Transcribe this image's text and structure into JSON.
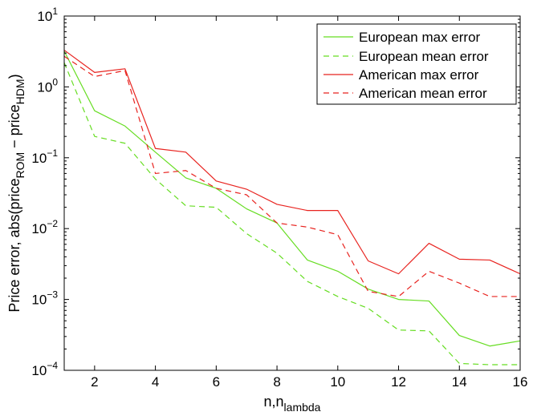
{
  "chart_data": {
    "type": "line",
    "title": "",
    "xlabel": "n,n",
    "xlabel_sub": "lambda",
    "ylabel_parts": [
      "Price error, abs(price",
      "ROM",
      " − price",
      "HDM",
      ")"
    ],
    "xlim": [
      1,
      16
    ],
    "ylim": [
      0.0001,
      10
    ],
    "yscale": "log",
    "grid": false,
    "legend_position": "top-right",
    "x_ticks": [
      2,
      4,
      6,
      8,
      10,
      12,
      14,
      16
    ],
    "y_ticks": [
      {
        "value": 0.0001,
        "base": "10",
        "exp": "−4"
      },
      {
        "value": 0.001,
        "base": "10",
        "exp": "−3"
      },
      {
        "value": 0.01,
        "base": "10",
        "exp": "−2"
      },
      {
        "value": 0.1,
        "base": "10",
        "exp": "−1"
      },
      {
        "value": 1,
        "base": "10",
        "exp": "0"
      },
      {
        "value": 10,
        "base": "10",
        "exp": "1"
      }
    ],
    "x": [
      1,
      2,
      3,
      4,
      5,
      6,
      7,
      8,
      9,
      10,
      11,
      12,
      13,
      14,
      15,
      16
    ],
    "series": [
      {
        "name": "European max error",
        "color": "#66dd22",
        "dash": "solid",
        "values": [
          3.2,
          0.46,
          0.28,
          0.12,
          0.052,
          0.037,
          0.019,
          0.012,
          0.0036,
          0.0025,
          0.0014,
          0.001,
          0.00095,
          0.00031,
          0.00022,
          0.00026
        ]
      },
      {
        "name": "European mean error",
        "color": "#66dd22",
        "dash": "dashed",
        "values": [
          2.2,
          0.2,
          0.16,
          0.05,
          0.021,
          0.02,
          0.0085,
          0.0045,
          0.0018,
          0.0011,
          0.00075,
          0.00037,
          0.00036,
          0.000125,
          0.00012,
          0.00012
        ]
      },
      {
        "name": "American max error",
        "color": "#e8231f",
        "dash": "solid",
        "values": [
          3.3,
          1.6,
          1.8,
          0.135,
          0.12,
          0.047,
          0.036,
          0.022,
          0.018,
          0.018,
          0.0035,
          0.0023,
          0.0062,
          0.0037,
          0.0036,
          0.0023
        ]
      },
      {
        "name": "American mean error",
        "color": "#e8231f",
        "dash": "dashed",
        "values": [
          2.7,
          1.4,
          1.7,
          0.06,
          0.066,
          0.037,
          0.03,
          0.012,
          0.0105,
          0.0082,
          0.0013,
          0.0011,
          0.0025,
          0.0017,
          0.0011,
          0.0011
        ]
      }
    ]
  }
}
